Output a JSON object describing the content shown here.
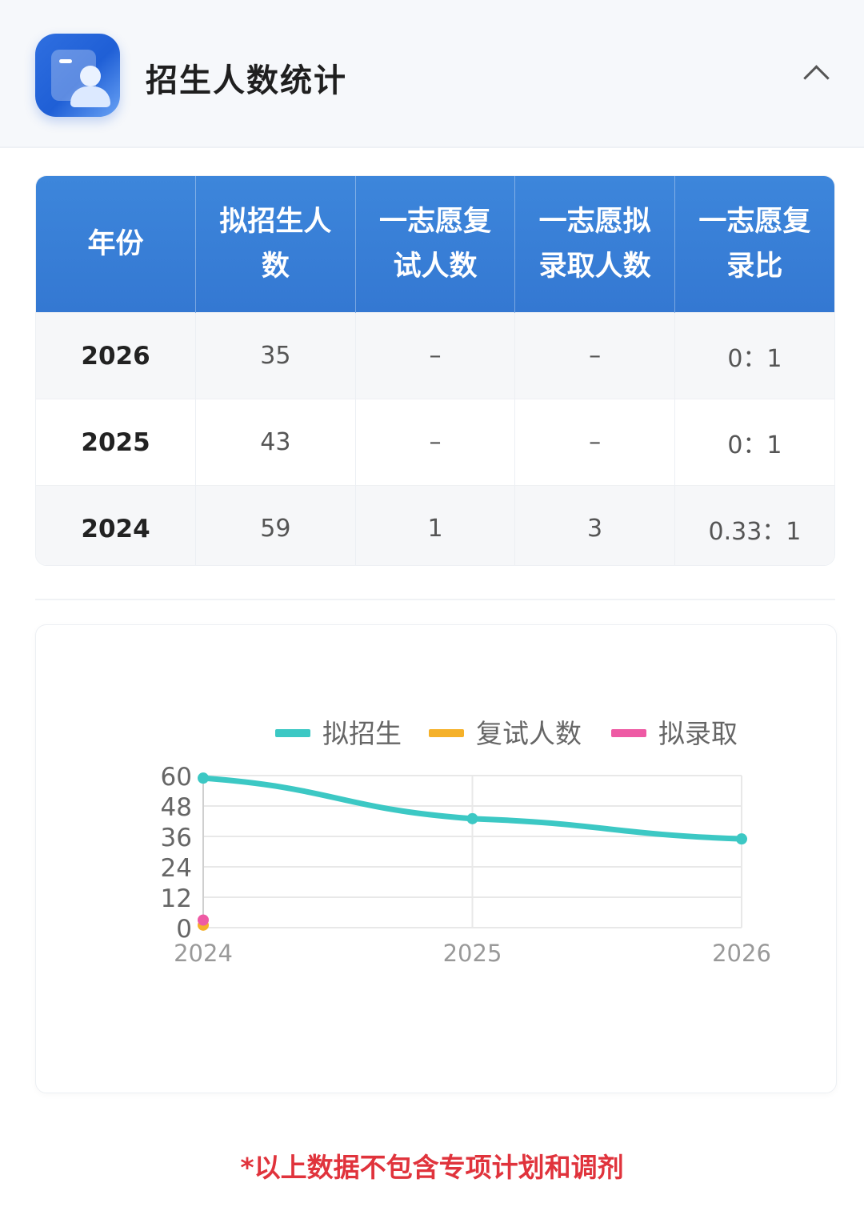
{
  "header": {
    "title": "招生人数统计",
    "icon": "user-card-icon",
    "collapse_icon": "chevron-up-icon"
  },
  "table": {
    "columns": [
      "年份",
      "拟招生人数",
      "一志愿复试人数",
      "一志愿拟录取人数",
      "一志愿复录比"
    ],
    "rows": [
      {
        "year": "2026",
        "plan": "35",
        "retest": "–",
        "admit": "–",
        "ratio": "0：1"
      },
      {
        "year": "2025",
        "plan": "43",
        "retest": "–",
        "admit": "–",
        "ratio": "0：1"
      },
      {
        "year": "2024",
        "plan": "59",
        "retest": "1",
        "admit": "3",
        "ratio": "0.33：1"
      }
    ]
  },
  "chart_data": {
    "type": "line",
    "categories": [
      "2024",
      "2025",
      "2026"
    ],
    "series": [
      {
        "name": "拟招生",
        "color": "#3cc8c4",
        "values": [
          59,
          43,
          35
        ]
      },
      {
        "name": "复试人数",
        "color": "#f5b12a",
        "values": [
          1,
          null,
          null
        ]
      },
      {
        "name": "拟录取",
        "color": "#ee5aa4",
        "values": [
          3,
          null,
          null
        ]
      }
    ],
    "yticks": [
      "0",
      "12",
      "24",
      "36",
      "48",
      "60"
    ],
    "ylim": [
      0,
      60
    ],
    "legend": "top",
    "grid": true
  },
  "footnote": "*以上数据不包含专项计划和调剂"
}
